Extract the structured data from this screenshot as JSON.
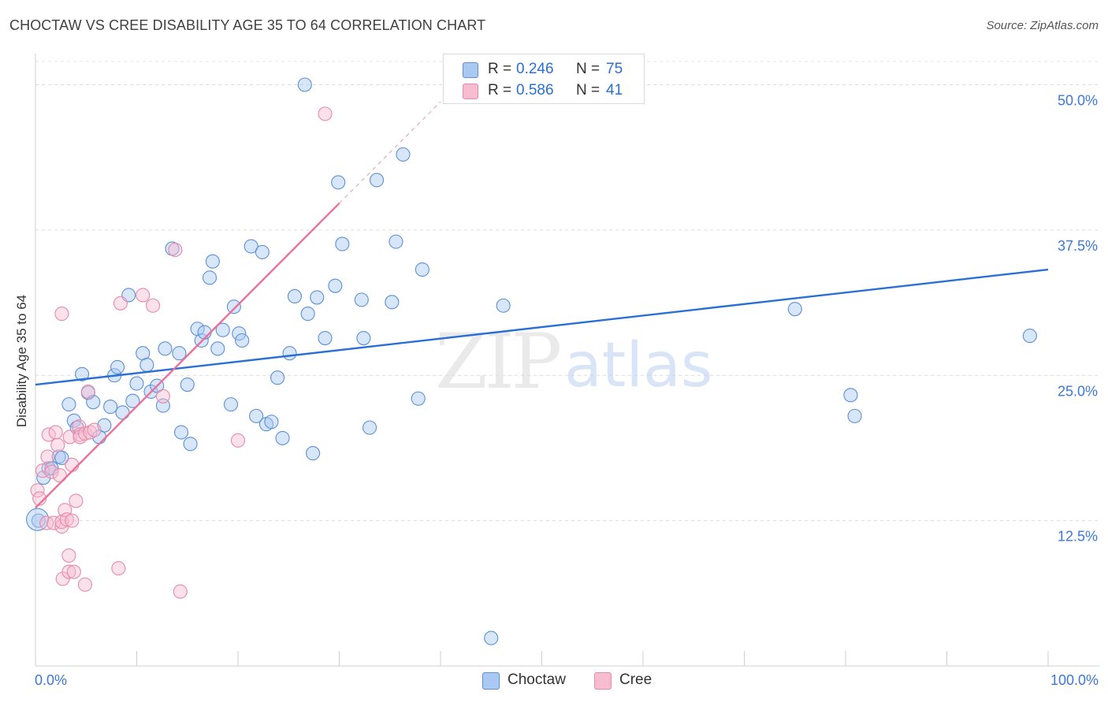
{
  "title": "CHOCTAW VS CREE DISABILITY AGE 35 TO 64 CORRELATION CHART",
  "source": "Source: ZipAtlas.com",
  "watermark": {
    "zip": "ZIP",
    "atlas": "atlas"
  },
  "legend": {
    "rows": [
      {
        "r_label": "R =",
        "r_value": "0.246",
        "n_label": "N =",
        "n_value": "75",
        "color": "#a9c8f2"
      },
      {
        "r_label": "R =",
        "r_value": "0.586",
        "n_label": "N =",
        "n_value": "41",
        "color": "#f7bcd0"
      }
    ]
  },
  "colors": {
    "choctaw_fill": "#a9c8f2",
    "choctaw_stroke": "#5b90d8",
    "choctaw_line": "#2a6fd6",
    "cree_fill": "#f7bcd0",
    "cree_stroke": "#e68aa8",
    "cree_line": "#e8729a",
    "tick_text": "#3b78d8"
  },
  "chart_data": {
    "type": "scatter",
    "title": "CHOCTAW VS CREE DISABILITY AGE 35 TO 64 CORRELATION CHART",
    "xlabel": "",
    "ylabel": "Disability Age 35 to 64",
    "xlim": [
      0,
      100
    ],
    "ylim": [
      0,
      52
    ],
    "x_tick_labels": [
      "0.0%",
      "100.0%"
    ],
    "y_ticks": [
      12.5,
      25.0,
      37.5,
      50.0
    ],
    "y_tick_labels": [
      "12.5%",
      "25.0%",
      "37.5%",
      "50.0%"
    ],
    "grid": true,
    "legend_position": "top-center",
    "series": [
      {
        "name": "Choctaw",
        "r": 0.246,
        "n": 75,
        "trend": {
          "x": [
            0,
            100
          ],
          "y": [
            24.2,
            34.1
          ]
        },
        "points": [
          [
            0.3,
            12.5
          ],
          [
            0.8,
            16.2
          ],
          [
            1.3,
            17.0
          ],
          [
            1.6,
            17.0
          ],
          [
            2.3,
            18.0
          ],
          [
            2.6,
            17.9
          ],
          [
            3.3,
            22.5
          ],
          [
            3.8,
            21.1
          ],
          [
            4.1,
            20.5
          ],
          [
            4.6,
            25.1
          ],
          [
            5.2,
            23.5
          ],
          [
            5.7,
            22.7
          ],
          [
            6.3,
            19.7
          ],
          [
            6.8,
            20.7
          ],
          [
            7.4,
            22.3
          ],
          [
            7.8,
            25.0
          ],
          [
            8.1,
            25.7
          ],
          [
            8.6,
            21.8
          ],
          [
            9.2,
            31.9
          ],
          [
            9.6,
            22.8
          ],
          [
            10.0,
            24.3
          ],
          [
            10.6,
            26.9
          ],
          [
            11.0,
            25.9
          ],
          [
            11.4,
            23.6
          ],
          [
            12.0,
            24.1
          ],
          [
            12.6,
            22.4
          ],
          [
            12.8,
            27.3
          ],
          [
            13.5,
            35.9
          ],
          [
            14.2,
            26.9
          ],
          [
            14.4,
            20.1
          ],
          [
            15.0,
            24.2
          ],
          [
            15.3,
            19.1
          ],
          [
            16.0,
            29.0
          ],
          [
            16.4,
            28.0
          ],
          [
            16.7,
            28.7
          ],
          [
            17.2,
            33.4
          ],
          [
            17.5,
            34.8
          ],
          [
            18.0,
            27.3
          ],
          [
            18.5,
            28.9
          ],
          [
            19.3,
            22.5
          ],
          [
            19.6,
            30.9
          ],
          [
            20.1,
            28.6
          ],
          [
            20.4,
            28.0
          ],
          [
            21.3,
            36.1
          ],
          [
            21.8,
            21.5
          ],
          [
            22.4,
            35.6
          ],
          [
            22.8,
            20.8
          ],
          [
            23.3,
            21.0
          ],
          [
            23.9,
            24.8
          ],
          [
            24.4,
            19.6
          ],
          [
            25.1,
            26.9
          ],
          [
            25.6,
            31.8
          ],
          [
            26.6,
            50.0
          ],
          [
            26.9,
            30.3
          ],
          [
            27.4,
            18.3
          ],
          [
            27.8,
            31.7
          ],
          [
            28.6,
            28.2
          ],
          [
            29.6,
            32.7
          ],
          [
            29.9,
            41.6
          ],
          [
            30.3,
            36.3
          ],
          [
            32.2,
            31.5
          ],
          [
            32.4,
            28.2
          ],
          [
            33.0,
            20.5
          ],
          [
            33.7,
            41.8
          ],
          [
            35.2,
            31.3
          ],
          [
            35.6,
            36.5
          ],
          [
            36.3,
            44.0
          ],
          [
            37.8,
            23.0
          ],
          [
            38.2,
            34.1
          ],
          [
            45.0,
            2.4
          ],
          [
            46.2,
            31.0
          ],
          [
            75.0,
            30.7
          ],
          [
            80.5,
            23.3
          ],
          [
            80.9,
            21.5
          ],
          [
            98.2,
            28.4
          ]
        ]
      },
      {
        "name": "Cree",
        "r": 0.586,
        "n": 41,
        "trend": {
          "x": [
            0,
            30
          ],
          "y": [
            13.6,
            39.8
          ]
        },
        "points": [
          [
            0.2,
            15.1
          ],
          [
            0.4,
            14.4
          ],
          [
            0.7,
            16.8
          ],
          [
            1.1,
            12.3
          ],
          [
            1.2,
            18.0
          ],
          [
            1.3,
            19.9
          ],
          [
            1.6,
            16.7
          ],
          [
            1.8,
            12.3
          ],
          [
            2.0,
            20.1
          ],
          [
            2.2,
            19.0
          ],
          [
            2.4,
            16.4
          ],
          [
            2.6,
            12.0
          ],
          [
            2.6,
            12.4
          ],
          [
            2.6,
            30.3
          ],
          [
            2.7,
            7.5
          ],
          [
            2.9,
            13.4
          ],
          [
            3.1,
            12.6
          ],
          [
            3.3,
            9.5
          ],
          [
            3.3,
            8.1
          ],
          [
            3.4,
            19.7
          ],
          [
            3.6,
            12.5
          ],
          [
            3.6,
            17.3
          ],
          [
            3.8,
            8.1
          ],
          [
            4.0,
            14.2
          ],
          [
            4.3,
            20.6
          ],
          [
            4.4,
            19.9
          ],
          [
            4.4,
            19.7
          ],
          [
            4.9,
            20.0
          ],
          [
            4.9,
            7.0
          ],
          [
            5.2,
            23.6
          ],
          [
            5.4,
            20.1
          ],
          [
            5.8,
            20.3
          ],
          [
            8.2,
            8.4
          ],
          [
            8.4,
            31.2
          ],
          [
            10.6,
            31.9
          ],
          [
            11.6,
            31.0
          ],
          [
            13.8,
            35.8
          ],
          [
            14.3,
            6.4
          ],
          [
            20.0,
            19.4
          ],
          [
            28.6,
            47.5
          ],
          [
            12.6,
            23.2
          ]
        ]
      }
    ]
  }
}
